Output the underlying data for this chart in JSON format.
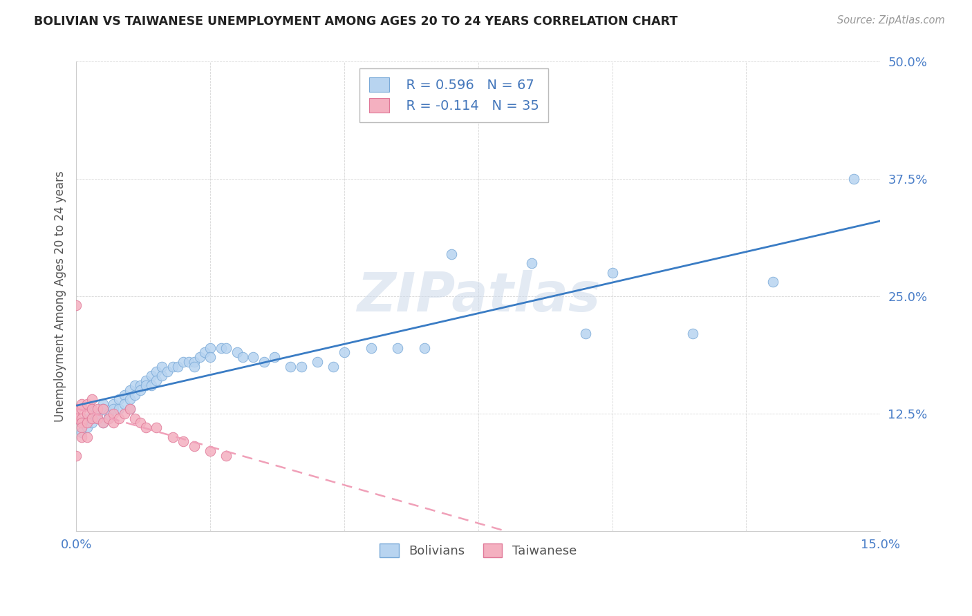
{
  "title": "BOLIVIAN VS TAIWANESE UNEMPLOYMENT AMONG AGES 20 TO 24 YEARS CORRELATION CHART",
  "source": "Source: ZipAtlas.com",
  "ylabel": "Unemployment Among Ages 20 to 24 years",
  "xlim": [
    0.0,
    0.15
  ],
  "ylim": [
    0.0,
    0.5
  ],
  "xticks": [
    0.0,
    0.025,
    0.05,
    0.075,
    0.1,
    0.125,
    0.15
  ],
  "xticklabels": [
    "0.0%",
    "",
    "",
    "",
    "",
    "",
    "15.0%"
  ],
  "yticks": [
    0.0,
    0.125,
    0.25,
    0.375,
    0.5
  ],
  "yticklabels": [
    "",
    "12.5%",
    "25.0%",
    "37.5%",
    "50.0%"
  ],
  "bolivia_color": "#b8d4f0",
  "taiwan_color": "#f4b0c0",
  "bolivia_edge": "#7aaad8",
  "taiwan_edge": "#e07898",
  "trendline_bolivia_color": "#3a7cc4",
  "trendline_taiwan_color": "#f0a0b8",
  "R_bolivia": 0.596,
  "N_bolivia": 67,
  "R_taiwan": -0.114,
  "N_taiwan": 35,
  "bolivia_x": [
    0.001,
    0.001,
    0.002,
    0.002,
    0.003,
    0.003,
    0.004,
    0.004,
    0.005,
    0.005,
    0.005,
    0.006,
    0.006,
    0.007,
    0.007,
    0.008,
    0.008,
    0.009,
    0.009,
    0.01,
    0.01,
    0.01,
    0.011,
    0.011,
    0.012,
    0.012,
    0.013,
    0.013,
    0.014,
    0.014,
    0.015,
    0.015,
    0.016,
    0.016,
    0.017,
    0.018,
    0.019,
    0.02,
    0.021,
    0.022,
    0.022,
    0.023,
    0.024,
    0.025,
    0.025,
    0.027,
    0.028,
    0.03,
    0.031,
    0.033,
    0.035,
    0.037,
    0.04,
    0.042,
    0.045,
    0.048,
    0.05,
    0.055,
    0.06,
    0.065,
    0.07,
    0.085,
    0.095,
    0.1,
    0.115,
    0.13,
    0.145
  ],
  "bolivia_y": [
    0.115,
    0.105,
    0.12,
    0.11,
    0.13,
    0.115,
    0.125,
    0.12,
    0.135,
    0.13,
    0.115,
    0.125,
    0.12,
    0.135,
    0.13,
    0.14,
    0.13,
    0.145,
    0.135,
    0.15,
    0.14,
    0.13,
    0.155,
    0.145,
    0.155,
    0.15,
    0.16,
    0.155,
    0.165,
    0.155,
    0.17,
    0.16,
    0.165,
    0.175,
    0.17,
    0.175,
    0.175,
    0.18,
    0.18,
    0.18,
    0.175,
    0.185,
    0.19,
    0.195,
    0.185,
    0.195,
    0.195,
    0.19,
    0.185,
    0.185,
    0.18,
    0.185,
    0.175,
    0.175,
    0.18,
    0.175,
    0.19,
    0.195,
    0.195,
    0.195,
    0.295,
    0.285,
    0.21,
    0.275,
    0.21,
    0.265,
    0.375
  ],
  "taiwan_x": [
    0.0,
    0.0,
    0.0,
    0.001,
    0.001,
    0.001,
    0.001,
    0.001,
    0.001,
    0.002,
    0.002,
    0.002,
    0.002,
    0.003,
    0.003,
    0.003,
    0.004,
    0.004,
    0.005,
    0.005,
    0.006,
    0.007,
    0.007,
    0.008,
    0.009,
    0.01,
    0.011,
    0.012,
    0.013,
    0.015,
    0.018,
    0.02,
    0.022,
    0.025,
    0.028
  ],
  "taiwan_y": [
    0.13,
    0.12,
    0.08,
    0.135,
    0.13,
    0.12,
    0.115,
    0.11,
    0.1,
    0.135,
    0.125,
    0.115,
    0.1,
    0.14,
    0.13,
    0.12,
    0.13,
    0.12,
    0.13,
    0.115,
    0.12,
    0.125,
    0.115,
    0.12,
    0.125,
    0.13,
    0.12,
    0.115,
    0.11,
    0.11,
    0.1,
    0.095,
    0.09,
    0.085,
    0.08
  ],
  "taiwan_outlier_x": [
    0.0
  ],
  "taiwan_outlier_y": [
    0.24
  ],
  "watermark": "ZIPatlas",
  "watermark_color": "#ccd9ea",
  "legend_text_color": "#4477bb",
  "axis_tick_color": "#4a7ec8",
  "title_color": "#222222",
  "grid_color": "#cccccc",
  "background_color": "#ffffff"
}
